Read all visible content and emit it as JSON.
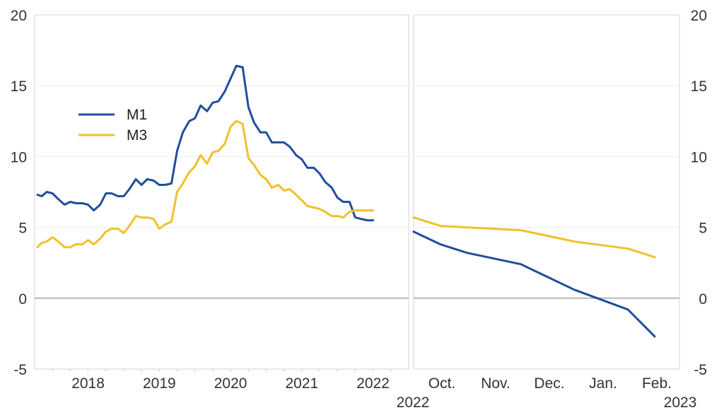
{
  "chart_data": [
    {
      "type": "line",
      "x_tick_labels": [
        "2018",
        "2019",
        "2020",
        "2021",
        "2022"
      ],
      "y_tick_labels": [
        "20",
        "15",
        "10",
        "5",
        "0",
        "-5"
      ],
      "ylim": [
        -5,
        20
      ],
      "xlim": [
        2017.75,
        2023.0
      ],
      "grid": "horizontal",
      "legend_position": "center-left",
      "series": [
        {
          "name": "M1",
          "color": "#1f4e9c",
          "x": [
            2017.79,
            2017.85,
            2017.92,
            2018.0,
            2018.08,
            2018.17,
            2018.25,
            2018.33,
            2018.42,
            2018.5,
            2018.58,
            2018.67,
            2018.75,
            2018.83,
            2018.92,
            2019.0,
            2019.08,
            2019.17,
            2019.25,
            2019.33,
            2019.42,
            2019.5,
            2019.58,
            2019.67,
            2019.75,
            2019.83,
            2019.92,
            2020.0,
            2020.08,
            2020.17,
            2020.25,
            2020.33,
            2020.42,
            2020.5,
            2020.58,
            2020.67,
            2020.75,
            2020.83,
            2020.92,
            2021.0,
            2021.08,
            2021.17,
            2021.25,
            2021.33,
            2021.42,
            2021.5,
            2021.58,
            2021.67,
            2021.75,
            2021.83,
            2021.92,
            2022.0,
            2022.08,
            2022.17,
            2022.25,
            2022.33,
            2022.42,
            2022.5
          ],
          "values": [
            7.3,
            7.2,
            7.5,
            7.4,
            7.0,
            6.6,
            6.8,
            6.7,
            6.7,
            6.6,
            6.2,
            6.6,
            7.4,
            7.4,
            7.2,
            7.2,
            7.7,
            8.4,
            8.0,
            8.4,
            8.3,
            8.0,
            8.0,
            8.1,
            10.4,
            11.7,
            12.5,
            12.7,
            13.6,
            13.2,
            13.8,
            13.9,
            14.6,
            15.5,
            16.4,
            16.3,
            13.5,
            12.4,
            11.7,
            11.7,
            11.0,
            11.0,
            11.0,
            10.7,
            10.1,
            9.8,
            9.2,
            9.2,
            8.8,
            8.2,
            7.8,
            7.1,
            6.8,
            6.8,
            5.7,
            5.6,
            5.5,
            5.5
          ]
        },
        {
          "name": "M3",
          "color": "#f0c12c",
          "x": [
            2017.79,
            2017.85,
            2017.92,
            2018.0,
            2018.08,
            2018.17,
            2018.25,
            2018.33,
            2018.42,
            2018.5,
            2018.58,
            2018.67,
            2018.75,
            2018.83,
            2018.92,
            2019.0,
            2019.08,
            2019.17,
            2019.25,
            2019.33,
            2019.42,
            2019.5,
            2019.58,
            2019.67,
            2019.75,
            2019.83,
            2019.92,
            2020.0,
            2020.08,
            2020.17,
            2020.25,
            2020.33,
            2020.42,
            2020.5,
            2020.58,
            2020.67,
            2020.75,
            2020.83,
            2020.92,
            2021.0,
            2021.08,
            2021.17,
            2021.25,
            2021.33,
            2021.42,
            2021.5,
            2021.58,
            2021.67,
            2021.75,
            2021.83,
            2021.92,
            2022.0,
            2022.08,
            2022.17,
            2022.25,
            2022.33,
            2022.42,
            2022.5
          ],
          "values": [
            3.6,
            3.9,
            4.0,
            4.3,
            4.0,
            3.6,
            3.6,
            3.8,
            3.8,
            4.1,
            3.8,
            4.2,
            4.7,
            4.9,
            4.9,
            4.6,
            5.1,
            5.8,
            5.7,
            5.7,
            5.6,
            4.9,
            5.2,
            5.4,
            7.5,
            8.1,
            8.9,
            9.3,
            10.1,
            9.5,
            10.3,
            10.4,
            10.9,
            12.1,
            12.5,
            12.3,
            9.9,
            9.4,
            8.7,
            8.4,
            7.8,
            8.0,
            7.6,
            7.7,
            7.3,
            6.9,
            6.5,
            6.4,
            6.3,
            6.1,
            5.8,
            5.8,
            5.7,
            6.1,
            6.2,
            6.2,
            6.2,
            6.2
          ]
        }
      ]
    },
    {
      "type": "line",
      "x_categories": [
        "Oct.",
        "Nov.",
        "Dec.",
        "Jan.",
        "Feb."
      ],
      "corner_labels": [
        "2022",
        "2023"
      ],
      "y_tick_labels": [
        "20",
        "15",
        "10",
        "5",
        "0",
        "-5"
      ],
      "ylim": [
        -5,
        20
      ],
      "grid": "horizontal",
      "series": [
        {
          "name": "M3",
          "color": "#f0c12c",
          "x": [
            0,
            0.5,
            1,
            2,
            3,
            4,
            4.5
          ],
          "values": [
            5.7,
            5.1,
            5.0,
            4.8,
            4.0,
            3.5,
            2.9
          ]
        },
        {
          "name": "M1",
          "color": "#1f4e9c",
          "x": [
            0,
            0.5,
            1,
            2,
            3,
            4,
            4.5
          ],
          "values": [
            4.7,
            3.8,
            3.2,
            2.4,
            0.6,
            -0.8,
            -2.7
          ]
        }
      ]
    }
  ]
}
